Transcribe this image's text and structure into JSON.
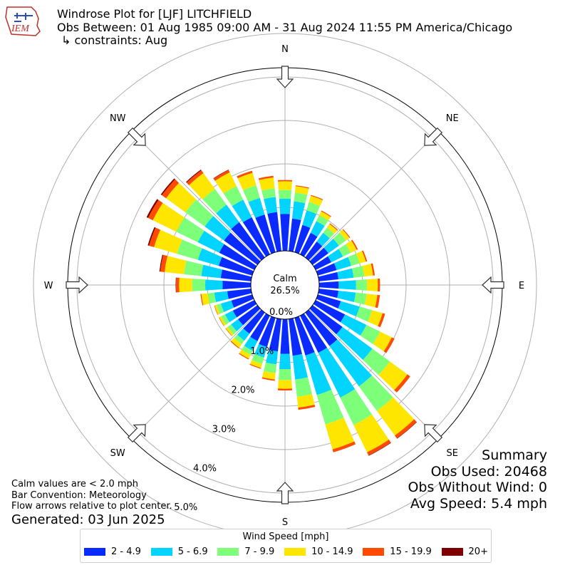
{
  "header": {
    "title": "Windrose Plot for [LJF] LITCHFIELD",
    "obs_between": "Obs Between: 01 Aug 1985 09:00 AM - 31 Aug 2024 11:55 PM America/Chicago",
    "constraints": "↳ constraints: Aug",
    "logo_text": "IEM"
  },
  "notes": {
    "line1": "Calm values are < 2.0 mph",
    "line2": "Bar Convention: Meteorology",
    "line3": "Flow arrows relative to plot center.",
    "generated": "Generated: 03 Jun 2025"
  },
  "summary": {
    "title": "Summary",
    "obs_used": "Obs Used: 20468",
    "obs_without_wind": "Obs Without Wind: 0",
    "avg_speed": "Avg Speed: 5.4 mph"
  },
  "legend": {
    "title": "Wind Speed [mph]",
    "items": [
      {
        "label": "2 - 4.9",
        "color": "#0a2bff"
      },
      {
        "label": "5 - 6.9",
        "color": "#00d4ff"
      },
      {
        "label": "7 - 9.9",
        "color": "#7dff7a"
      },
      {
        "label": "10 - 14.9",
        "color": "#ffe600"
      },
      {
        "label": "15 - 19.9",
        "color": "#ff4a00"
      },
      {
        "label": "20+",
        "color": "#7f0000"
      }
    ]
  },
  "chart_data": {
    "type": "windrose",
    "calm_label": "Calm",
    "calm_value": "26.5%",
    "radial_ticks": [
      "0.0%",
      "1.0%",
      "2.0%",
      "3.0%",
      "4.0%",
      "5.0%"
    ],
    "directions": [
      "N",
      "NE",
      "E",
      "SE",
      "S",
      "SW",
      "W",
      "NW"
    ],
    "bin_width_deg": 10,
    "bins_deg": [
      0,
      10,
      20,
      30,
      40,
      50,
      60,
      70,
      80,
      90,
      100,
      110,
      120,
      130,
      140,
      150,
      160,
      170,
      180,
      190,
      200,
      210,
      220,
      230,
      240,
      250,
      260,
      270,
      280,
      290,
      300,
      310,
      320,
      330,
      340,
      350
    ],
    "series": [
      {
        "name": "2 - 4.9",
        "values": [
          0.85,
          0.75,
          0.65,
          0.55,
          0.45,
          0.45,
          0.4,
          0.45,
          0.45,
          0.45,
          0.45,
          0.55,
          0.75,
          0.85,
          0.95,
          0.95,
          0.9,
          0.85,
          0.8,
          0.75,
          0.7,
          0.65,
          0.6,
          0.55,
          0.55,
          0.5,
          0.55,
          0.65,
          0.7,
          0.8,
          0.9,
          0.95,
          1.0,
          0.95,
          0.9,
          0.9
        ]
      },
      {
        "name": "5 - 6.9",
        "values": [
          0.35,
          0.4,
          0.35,
          0.3,
          0.25,
          0.3,
          0.3,
          0.35,
          0.35,
          0.4,
          0.4,
          0.45,
          0.55,
          0.85,
          1.15,
          1.15,
          0.95,
          0.55,
          0.35,
          0.3,
          0.25,
          0.25,
          0.2,
          0.2,
          0.2,
          0.25,
          0.3,
          0.4,
          0.45,
          0.5,
          0.55,
          0.55,
          0.5,
          0.45,
          0.4,
          0.35
        ]
      },
      {
        "name": "7 - 9.9",
        "values": [
          0.2,
          0.2,
          0.2,
          0.15,
          0.15,
          0.2,
          0.2,
          0.2,
          0.25,
          0.25,
          0.25,
          0.3,
          0.35,
          0.5,
          0.7,
          0.7,
          0.7,
          0.4,
          0.25,
          0.2,
          0.15,
          0.1,
          0.1,
          0.1,
          0.1,
          0.1,
          0.15,
          0.3,
          0.4,
          0.5,
          0.55,
          0.55,
          0.45,
          0.35,
          0.3,
          0.2
        ]
      },
      {
        "name": "10 - 14.9",
        "values": [
          0.2,
          0.15,
          0.15,
          0.1,
          0.1,
          0.1,
          0.15,
          0.15,
          0.2,
          0.25,
          0.25,
          0.25,
          0.3,
          0.5,
          0.7,
          0.7,
          0.6,
          0.25,
          0.2,
          0.15,
          0.1,
          0.1,
          0.1,
          0.05,
          0.05,
          0.05,
          0.15,
          0.3,
          0.45,
          0.55,
          0.6,
          0.55,
          0.45,
          0.35,
          0.3,
          0.25
        ]
      },
      {
        "name": "15 - 19.9",
        "values": [
          0.03,
          0.02,
          0.02,
          0.02,
          0.02,
          0.02,
          0.03,
          0.03,
          0.04,
          0.05,
          0.06,
          0.06,
          0.07,
          0.08,
          0.08,
          0.08,
          0.07,
          0.05,
          0.04,
          0.03,
          0.02,
          0.02,
          0.02,
          0.01,
          0.01,
          0.01,
          0.02,
          0.07,
          0.1,
          0.12,
          0.12,
          0.12,
          0.08,
          0.06,
          0.05,
          0.04
        ]
      },
      {
        "name": "20+",
        "values": [
          0.0,
          0.0,
          0.0,
          0.0,
          0.0,
          0.0,
          0.0,
          0.0,
          0.0,
          0.0,
          0.0,
          0.0,
          0.0,
          0.0,
          0.01,
          0.01,
          0.0,
          0.0,
          0.0,
          0.0,
          0.0,
          0.0,
          0.0,
          0.0,
          0.0,
          0.0,
          0.0,
          0.01,
          0.02,
          0.03,
          0.04,
          0.03,
          0.02,
          0.01,
          0.0,
          0.0
        ]
      }
    ],
    "rmax": 5.0
  }
}
